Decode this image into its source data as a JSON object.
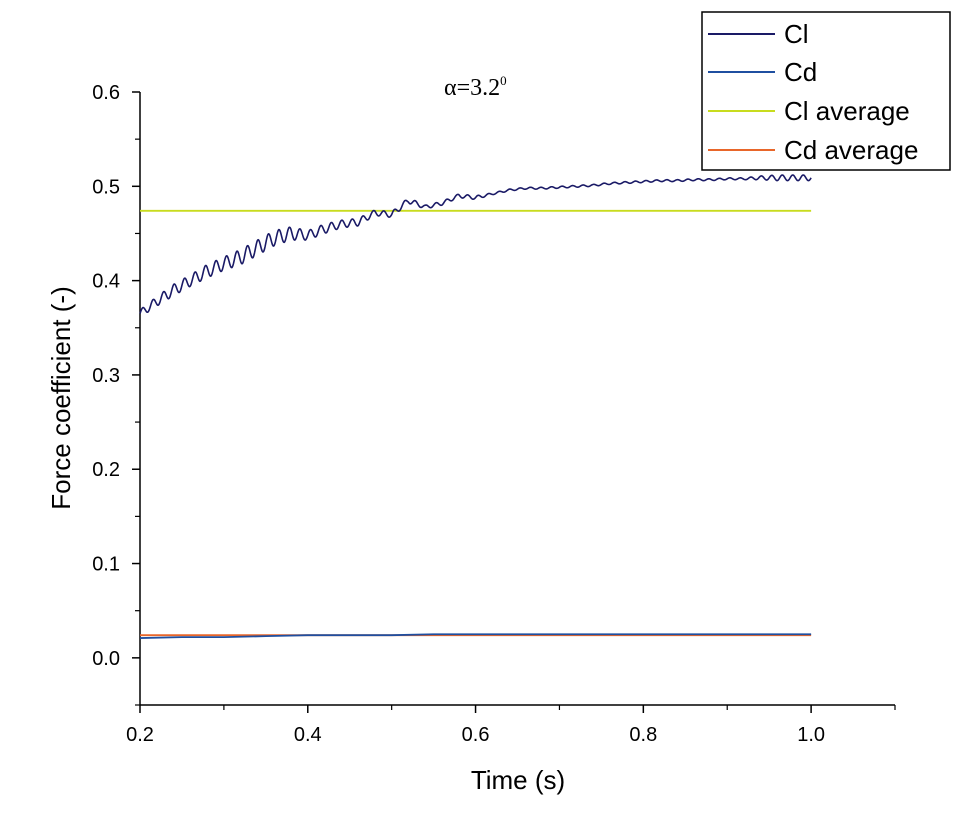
{
  "chart_data": {
    "type": "line",
    "title": "",
    "annotation": {
      "symbol": "α",
      "text": "=3.2",
      "superscript": "0"
    },
    "xlabel": "Time (s)",
    "ylabel": "Force coefficient (-)",
    "xlim": [
      0.2,
      1.1
    ],
    "ylim": [
      -0.05,
      0.6
    ],
    "xticks": [
      {
        "value": 0.2,
        "label": "0.2"
      },
      {
        "value": 0.4,
        "label": "0.4"
      },
      {
        "value": 0.6,
        "label": "0.6"
      },
      {
        "value": 0.8,
        "label": "0.8"
      },
      {
        "value": 1.0,
        "label": "1.0"
      }
    ],
    "yticks": [
      {
        "value": 0.0,
        "label": "0.0"
      },
      {
        "value": 0.1,
        "label": "0.1"
      },
      {
        "value": 0.2,
        "label": "0.2"
      },
      {
        "value": 0.3,
        "label": "0.3"
      },
      {
        "value": 0.4,
        "label": "0.4"
      },
      {
        "value": 0.5,
        "label": "0.5"
      },
      {
        "value": 0.6,
        "label": "0.6"
      }
    ],
    "grid": false,
    "legend_position": "top-right",
    "series": [
      {
        "name": "Cl",
        "color": "#1a1a66",
        "x": [
          0.2,
          0.22,
          0.24,
          0.26,
          0.28,
          0.3,
          0.32,
          0.34,
          0.36,
          0.38,
          0.4,
          0.42,
          0.44,
          0.46,
          0.48,
          0.5,
          0.52,
          0.54,
          0.56,
          0.58,
          0.6,
          0.62,
          0.64,
          0.66,
          0.68,
          0.7,
          0.72,
          0.74,
          0.76,
          0.78,
          0.8,
          0.82,
          0.84,
          0.86,
          0.88,
          0.9,
          0.92,
          0.94,
          0.96,
          0.98,
          1.0
        ],
        "y": [
          0.365,
          0.378,
          0.39,
          0.4,
          0.41,
          0.418,
          0.425,
          0.435,
          0.445,
          0.45,
          0.448,
          0.455,
          0.46,
          0.462,
          0.472,
          0.47,
          0.485,
          0.478,
          0.482,
          0.49,
          0.488,
          0.492,
          0.496,
          0.498,
          0.498,
          0.499,
          0.5,
          0.501,
          0.503,
          0.504,
          0.505,
          0.506,
          0.506,
          0.507,
          0.507,
          0.508,
          0.508,
          0.509,
          0.509,
          0.509,
          0.509
        ],
        "oscillation_amplitude": [
          0.004,
          0.005,
          0.006,
          0.006,
          0.007,
          0.007,
          0.008,
          0.008,
          0.008,
          0.007,
          0.005,
          0.005,
          0.004,
          0.004,
          0.003,
          0.003,
          0.003,
          0.002,
          0.002,
          0.002,
          0.002,
          0.001,
          0.001,
          0.001,
          0.001,
          0.001,
          0.001,
          0.001,
          0.001,
          0.001,
          0.001,
          0.001,
          0.001,
          0.001,
          0.001,
          0.001,
          0.001,
          0.002,
          0.003,
          0.003,
          0.003
        ]
      },
      {
        "name": "Cd",
        "color": "#1f4fa0",
        "x": [
          0.2,
          0.25,
          0.3,
          0.35,
          0.4,
          0.45,
          0.5,
          0.55,
          0.6,
          0.65,
          0.7,
          0.75,
          0.8,
          0.85,
          0.9,
          0.95,
          1.0
        ],
        "y": [
          0.021,
          0.022,
          0.022,
          0.023,
          0.024,
          0.024,
          0.024,
          0.025,
          0.025,
          0.025,
          0.025,
          0.025,
          0.025,
          0.025,
          0.025,
          0.025,
          0.025
        ]
      },
      {
        "name": "Cl average",
        "color": "#c8dc1e",
        "x": [
          0.2,
          1.0
        ],
        "y": [
          0.474,
          0.474
        ]
      },
      {
        "name": "Cd average",
        "color": "#e8662a",
        "x": [
          0.2,
          1.0
        ],
        "y": [
          0.024,
          0.024
        ]
      }
    ]
  }
}
